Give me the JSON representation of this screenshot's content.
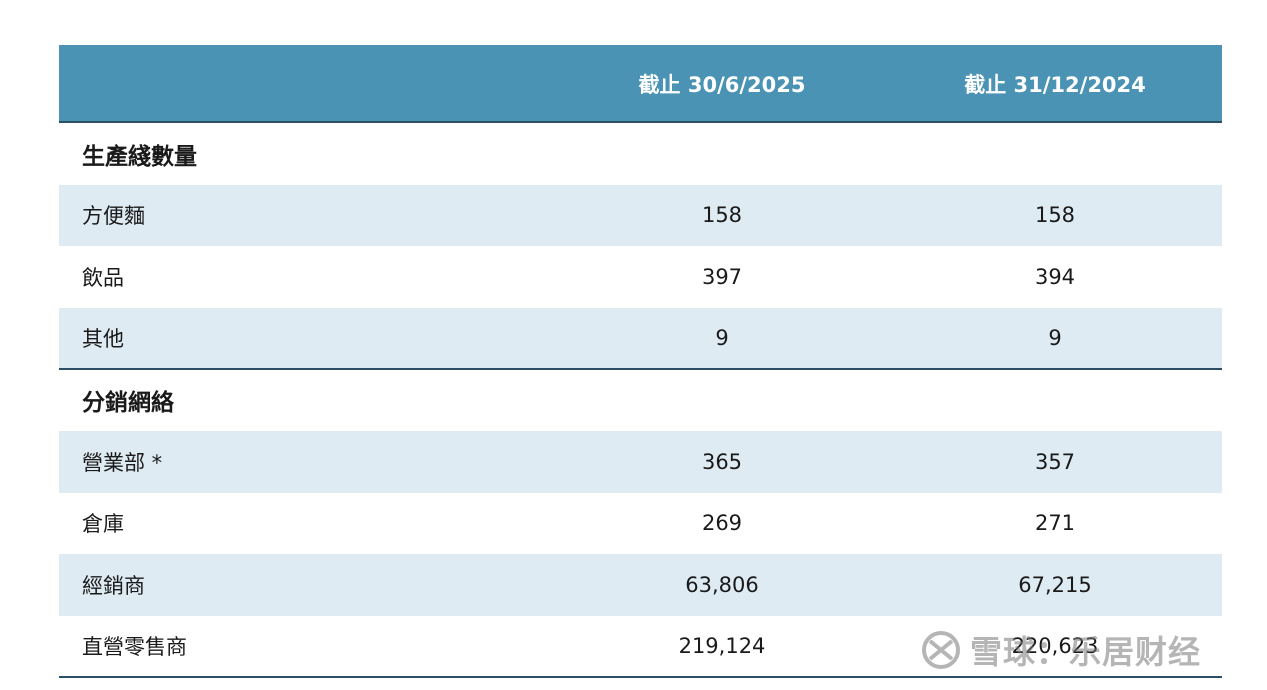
{
  "header": {
    "col1": "截止 30/6/2025",
    "col2": "截止 31/12/2024"
  },
  "sections": [
    {
      "title": "生產綫數量",
      "rows": [
        {
          "label": "方便麵",
          "v1": "158",
          "v2": "158"
        },
        {
          "label": "飲品",
          "v1": "397",
          "v2": "394"
        },
        {
          "label": "其他",
          "v1": "9",
          "v2": "9"
        }
      ]
    },
    {
      "title": "分銷網絡",
      "rows": [
        {
          "label": "營業部 *",
          "v1": "365",
          "v2": "357"
        },
        {
          "label": "倉庫",
          "v1": "269",
          "v2": "271"
        },
        {
          "label": "經銷商",
          "v1": "63,806",
          "v2": "67,215"
        },
        {
          "label": "直營零售商",
          "v1": "219,124",
          "v2": "220,623"
        }
      ]
    }
  ],
  "watermark": {
    "text": "雪球：乐居财经",
    "icon": "snowball-logo-icon"
  }
}
